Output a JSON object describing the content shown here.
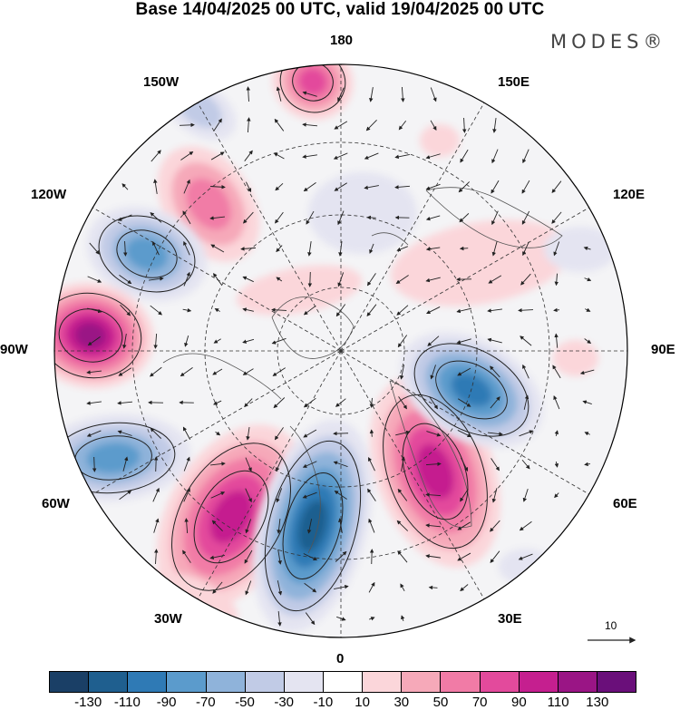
{
  "title": "Base 14/04/2025 00 UTC, valid 19/04/2025 00 UTC",
  "brand": "MODES®",
  "longitude_labels": {
    "deg180": "180",
    "deg150E": "150E",
    "deg120E": "120E",
    "deg90E": "90E",
    "deg60E": "60E",
    "deg30E": "30E",
    "deg0": "0",
    "deg30W": "30W",
    "deg60W": "60W",
    "deg90W": "90W",
    "deg120W": "120W",
    "deg150W": "150W"
  },
  "reference_vector": {
    "label": "10"
  },
  "colorbar": {
    "colors": [
      "#1a3f66",
      "#1f5f8f",
      "#2f7ab5",
      "#5b9bcc",
      "#8fb3da",
      "#c1cbe6",
      "#e4e4f1",
      "#ffffff",
      "#fbd6da",
      "#f6a9b9",
      "#f17ba6",
      "#e34a9c",
      "#c51f8f",
      "#9a1585",
      "#6a0f7a"
    ],
    "labels": [
      "-130",
      "-110",
      "-90",
      "-70",
      "-50",
      "-30",
      "-10",
      "10",
      "30",
      "50",
      "70",
      "90",
      "110",
      "130"
    ]
  }
}
